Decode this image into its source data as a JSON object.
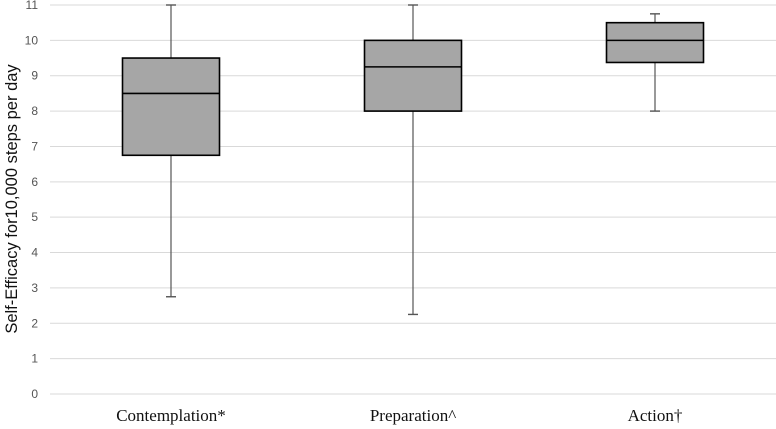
{
  "chart_data": {
    "type": "box",
    "ylabel": "Self-Efficacy for10,000 steps per day",
    "xlabel": "",
    "ylim": [
      0,
      11
    ],
    "y_ticks": [
      "0",
      "1",
      "2",
      "3",
      "4",
      "5",
      "6",
      "7",
      "8",
      "9",
      "10",
      "11"
    ],
    "grid": true,
    "categories": [
      "Contemplation*",
      "Preparation^",
      "Action†"
    ],
    "boxes": [
      {
        "category": "Contemplation*",
        "min": 2.75,
        "q1": 6.75,
        "median": 8.5,
        "q3": 9.5,
        "max": 11
      },
      {
        "category": "Preparation^",
        "min": 2.25,
        "q1": 8.0,
        "median": 9.25,
        "q3": 10.0,
        "max": 11
      },
      {
        "category": "Action†",
        "min": 8.0,
        "q1": 9.375,
        "median": 10.0,
        "q3": 10.5,
        "max": 10.75
      }
    ],
    "colors": {
      "box_fill": "#a6a6a6",
      "box_stroke": "#000000",
      "whisker": "#555555",
      "grid": "#d9d9d9"
    }
  }
}
